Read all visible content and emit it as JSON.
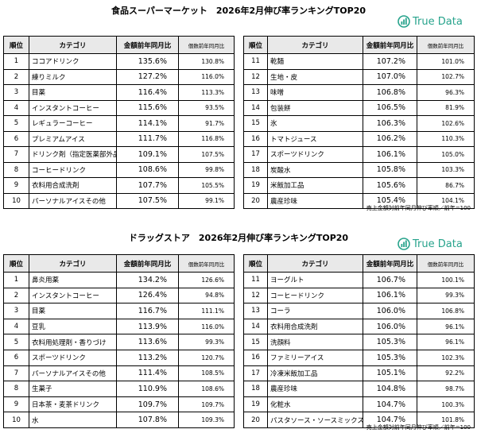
{
  "sections": [
    {
      "title": "食品スーパーマーケット　2026年2月伸び率ランキングTOP20",
      "logo": "True Data",
      "tables": [
        {
          "header": [
            "順位",
            "カテゴリ",
            "金額前年同月比",
            "個数前年同月比"
          ],
          "rows": [
            [
              "1",
              "ココアドリンク",
              "135.6%",
              "130.8%"
            ],
            [
              "2",
              "練りミルク",
              "127.2%",
              "116.0%"
            ],
            [
              "3",
              "目薬",
              "116.4%",
              "113.3%"
            ],
            [
              "4",
              "インスタントコーヒー",
              "115.6%",
              "93.5%"
            ],
            [
              "5",
              "レギュラーコーヒー",
              "114.1%",
              "91.7%"
            ],
            [
              "6",
              "プレミアムアイス",
              "111.7%",
              "116.8%"
            ],
            [
              "7",
              "ドリンク剤（指定医薬部外品）",
              "109.1%",
              "107.5%"
            ],
            [
              "8",
              "コーヒードリンク",
              "108.6%",
              "99.8%"
            ],
            [
              "9",
              "衣料用合成洗剤",
              "107.7%",
              "105.5%"
            ],
            [
              "10",
              "パーソナルアイスその他",
              "107.5%",
              "99.1%"
            ]
          ]
        },
        {
          "header": [
            "順位",
            "カテゴリ",
            "金額前年同月比",
            "個数前年同月比"
          ],
          "rows": [
            [
              "11",
              "乾麺",
              "107.2%",
              "101.0%"
            ],
            [
              "12",
              "生地・皮",
              "107.0%",
              "102.7%"
            ],
            [
              "13",
              "味噌",
              "106.8%",
              "96.3%"
            ],
            [
              "14",
              "包装餅",
              "106.5%",
              "81.9%"
            ],
            [
              "15",
              "氷",
              "106.3%",
              "102.6%"
            ],
            [
              "16",
              "トマトジュース",
              "106.2%",
              "110.3%"
            ],
            [
              "17",
              "スポーツドリンク",
              "106.1%",
              "105.0%"
            ],
            [
              "18",
              "炭酸水",
              "105.8%",
              "103.3%"
            ],
            [
              "19",
              "米飯加工品",
              "105.6%",
              "86.7%"
            ],
            [
              "20",
              "農産珍味",
              "105.4%",
              "104.1%"
            ]
          ]
        }
      ],
      "note": "売上金額対前年同月伸び率順／前年=100"
    },
    {
      "title": "ドラッグストア　2026年2月伸び率ランキングTOP20",
      "logo": "True Data",
      "tables": [
        {
          "header": [
            "順位",
            "カテゴリ",
            "金額前年同月比",
            "個数前年同月比"
          ],
          "rows": [
            [
              "1",
              "鼻炎用薬",
              "134.2%",
              "126.6%"
            ],
            [
              "2",
              "インスタントコーヒー",
              "126.4%",
              "94.8%"
            ],
            [
              "3",
              "目薬",
              "116.7%",
              "111.1%"
            ],
            [
              "4",
              "豆乳",
              "113.9%",
              "116.0%"
            ],
            [
              "5",
              "衣料用処理剤・香りづけ",
              "113.6%",
              "99.3%"
            ],
            [
              "6",
              "スポーツドリンク",
              "113.2%",
              "120.7%"
            ],
            [
              "7",
              "パーソナルアイスその他",
              "111.4%",
              "108.5%"
            ],
            [
              "8",
              "生菓子",
              "110.9%",
              "108.6%"
            ],
            [
              "9",
              "日本茶・麦茶ドリンク",
              "109.7%",
              "109.7%"
            ],
            [
              "10",
              "水",
              "107.8%",
              "109.3%"
            ]
          ]
        },
        {
          "header": [
            "順位",
            "カテゴリ",
            "金額前年同月比",
            "個数前年同月比"
          ],
          "rows": [
            [
              "11",
              "ヨーグルト",
              "106.7%",
              "100.1%"
            ],
            [
              "12",
              "コーヒードリンク",
              "106.1%",
              "99.3%"
            ],
            [
              "13",
              "コーラ",
              "106.0%",
              "106.8%"
            ],
            [
              "14",
              "衣料用合成洗剤",
              "106.0%",
              "96.1%"
            ],
            [
              "15",
              "洗顔料",
              "105.3%",
              "96.1%"
            ],
            [
              "16",
              "ファミリーアイス",
              "105.3%",
              "102.3%"
            ],
            [
              "17",
              "冷凍米飯加工品",
              "105.1%",
              "92.2%"
            ],
            [
              "18",
              "農産珍味",
              "104.8%",
              "98.7%"
            ],
            [
              "19",
              "化粧水",
              "104.7%",
              "100.3%"
            ],
            [
              "20",
              "パスタソース・ソースミックス",
              "104.7%",
              "101.8%"
            ]
          ]
        }
      ],
      "note": "売上金額対前年同月伸び率順／前年=100"
    }
  ]
}
